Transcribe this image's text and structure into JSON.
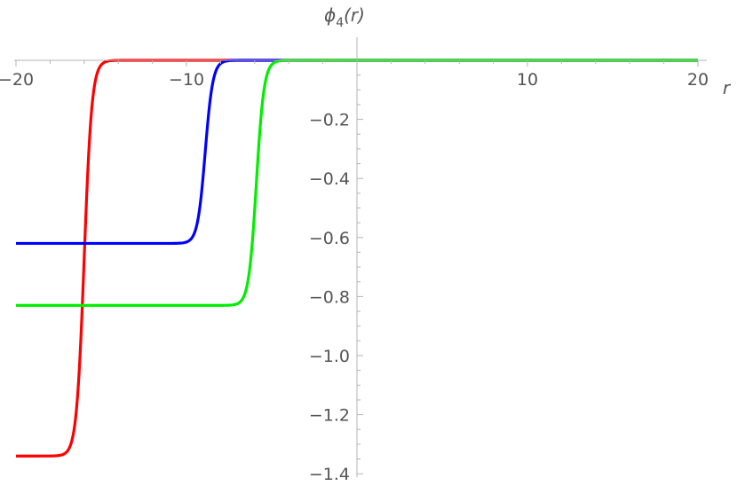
{
  "chart_data": {
    "type": "line",
    "ylabel": {
      "symbol": "ϕ",
      "subscript": "4",
      "argument": "(r)"
    },
    "xlabel": "r",
    "xlim": [
      -20,
      20
    ],
    "ylim": [
      -1.4,
      0
    ],
    "xticks": [
      -20,
      -10,
      10,
      20
    ],
    "xtick_labels": [
      "−20",
      "−10",
      "10",
      "20"
    ],
    "yticks": [
      -0.2,
      -0.4,
      -0.6,
      -0.8,
      -1.0,
      -1.2,
      -1.4
    ],
    "ytick_labels": [
      "−0.2",
      "−0.4",
      "−0.6",
      "−0.8",
      "−1.0",
      "−1.2",
      "−1.4"
    ],
    "grid": false,
    "series": [
      {
        "color": "#ff0000",
        "plateau": -1.34,
        "center": -16.0,
        "width": 0.45
      },
      {
        "color": "#0000ff",
        "plateau": -0.62,
        "center": -8.9,
        "width": 0.45
      },
      {
        "color": "#00ee00",
        "plateau": -0.83,
        "center": -5.9,
        "width": 0.45
      }
    ]
  }
}
